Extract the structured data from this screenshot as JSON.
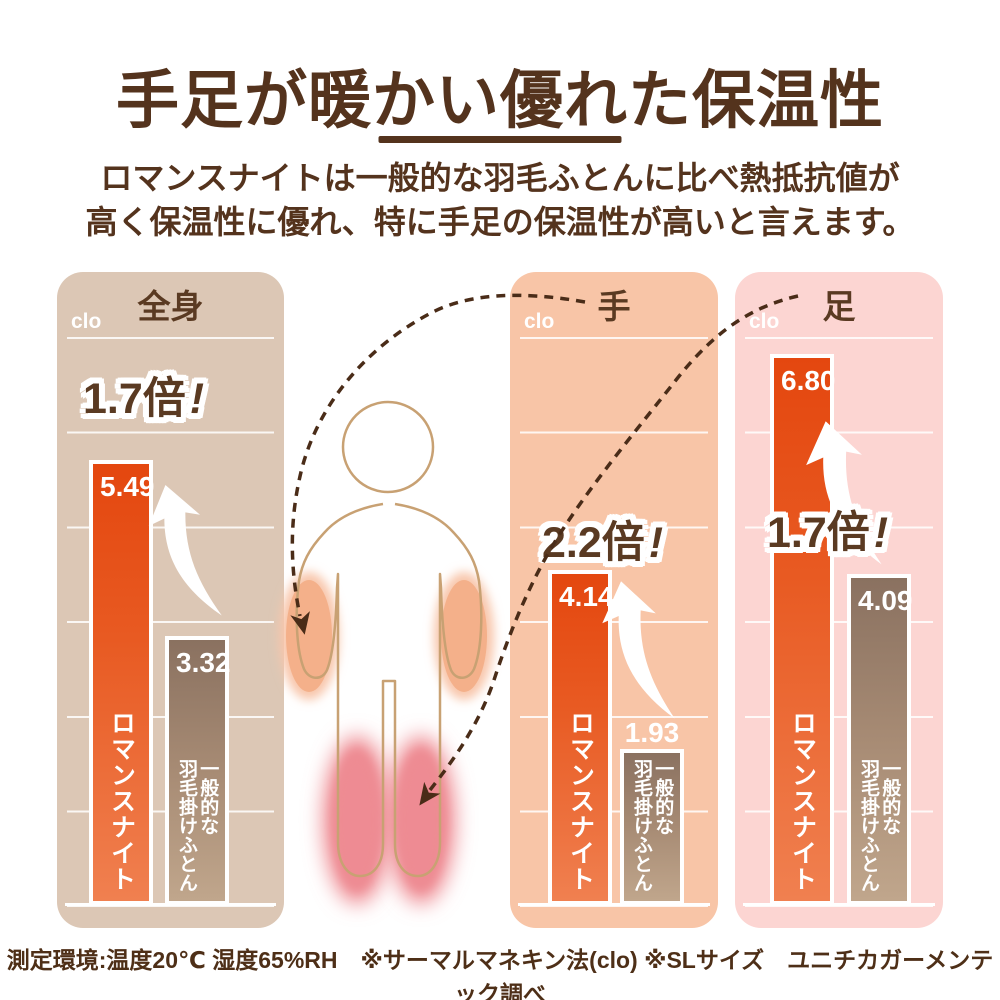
{
  "page": {
    "title": "手足が暖かい優れた保温性",
    "subtitle": [
      "ロマンスナイトは一般的な羽毛ふとんに比べ熱抵抗値が",
      "高く保温性に優れ、特に手足の保温性が高いと言えます。"
    ],
    "footnote": "測定環境:温度20℃ 湿度65%RH　※サーマルマネキン法(clo) ※SLサイズ　ユニチカガーメンテック調べ"
  },
  "chart_data": {
    "type": "bar",
    "unit": "clo",
    "series": [
      "ロマンスナイト",
      "一般的な羽毛掛けふとん"
    ],
    "panels": [
      {
        "category": "全身",
        "multiplier": "1.7倍",
        "bang": "!",
        "bars": {
          "romance": {
            "value": 5.49,
            "label": "5.49",
            "name": "ロマンスナイト"
          },
          "generic": {
            "value": 3.32,
            "label": "3.32",
            "name": "一般的な\n羽毛掛けふとん"
          }
        }
      },
      {
        "category": "手",
        "multiplier": "2.2倍",
        "bang": "!",
        "bars": {
          "romance": {
            "value": 4.14,
            "label": "4.14",
            "name": "ロマンスナイト"
          },
          "generic": {
            "value": 1.93,
            "label": "1.93",
            "name": "一般的な\n羽毛掛けふとん"
          }
        }
      },
      {
        "category": "足",
        "multiplier": "1.7倍",
        "bang": "!",
        "bars": {
          "romance": {
            "value": 6.8,
            "label": "6.80",
            "name": "ロマンスナイト"
          },
          "generic": {
            "value": 4.09,
            "label": "4.09",
            "name": "一般的な\n羽毛掛けふとん"
          }
        }
      }
    ],
    "layout_hints": {
      "grid": true,
      "legend": "none",
      "baseline_value": 0
    },
    "colors": {
      "romance_bar_top": "#e4470f",
      "romance_bar_bottom": "#f08050",
      "generic_bar_top": "#8a7160",
      "generic_bar_bottom": "#c0a68c",
      "panel_bg_full_body": "#dcc7b5",
      "panel_bg_hands": "#f8c5a7",
      "panel_bg_feet": "#fcd5d2",
      "text_brown": "#54331d",
      "figure_outline": "#c8a173"
    }
  }
}
